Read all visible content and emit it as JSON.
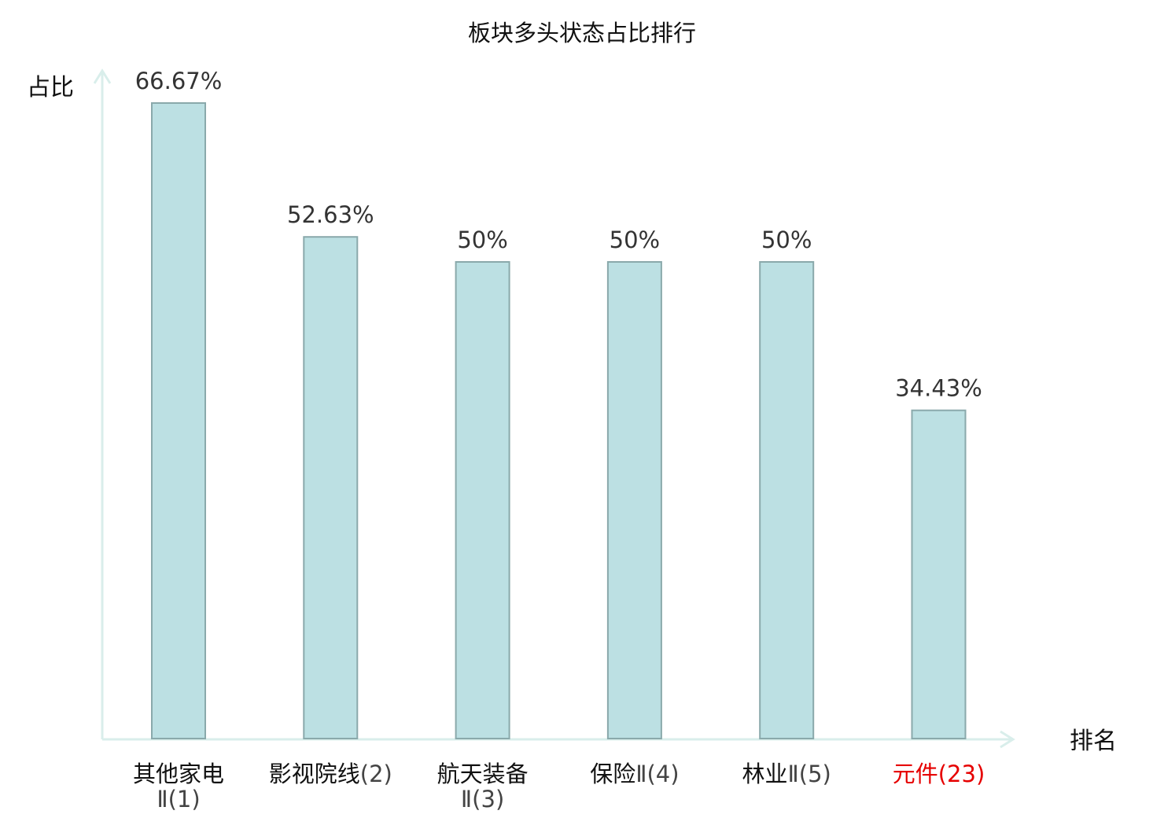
{
  "chart_data": {
    "type": "bar",
    "title": "板块多头状态占比排行",
    "xlabel": "排名",
    "ylabel": "占比",
    "categories": [
      {
        "name": "其他家电",
        "suffix": "Ⅱ",
        "rank": "(1)",
        "highlight": false
      },
      {
        "name": "影视院线",
        "suffix": "",
        "rank": "(2)",
        "highlight": false
      },
      {
        "name": "航天装备",
        "suffix": "Ⅱ",
        "rank": "(3)",
        "highlight": false
      },
      {
        "name": "保险",
        "suffix": "Ⅱ",
        "rank": "(4)",
        "highlight": false
      },
      {
        "name": "林业",
        "suffix": "Ⅱ",
        "rank": "(5)",
        "highlight": false
      },
      {
        "name": "元件",
        "suffix": "",
        "rank": "(23)",
        "highlight": true
      }
    ],
    "values": [
      66.67,
      52.63,
      50,
      50,
      50,
      34.43
    ],
    "value_labels": [
      "66.67%",
      "52.63%",
      "50%",
      "50%",
      "50%",
      "34.43%"
    ],
    "ylim": [
      0,
      70
    ],
    "grid": false,
    "legend": "none",
    "colors": {
      "bar_fill": "#bce0e3",
      "bar_stroke": "#8aa9ab",
      "axis": "#d9eeeb",
      "highlight_text": "#e60000",
      "normal_text": "#111111",
      "rank_text": "#444444"
    }
  }
}
